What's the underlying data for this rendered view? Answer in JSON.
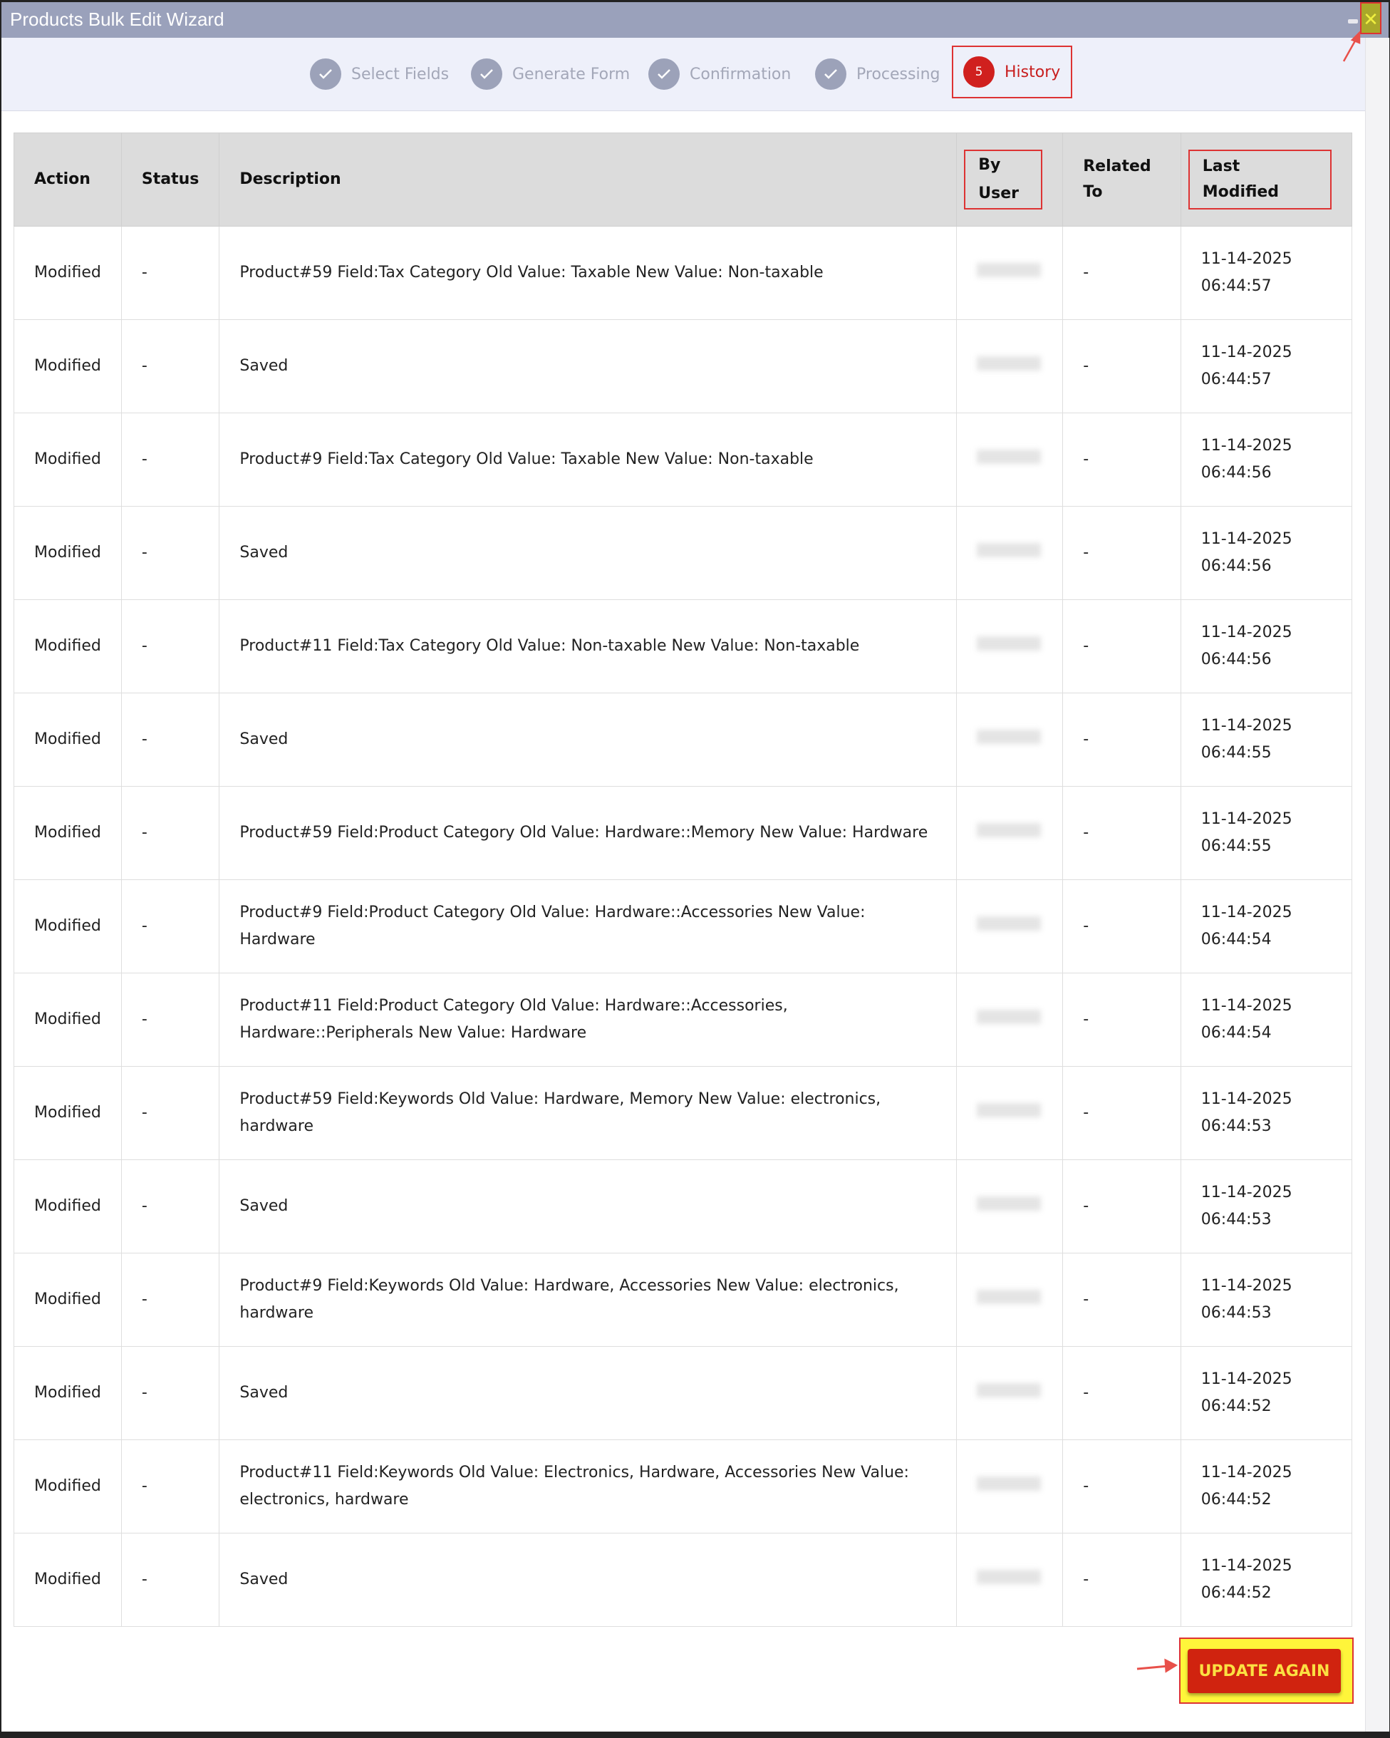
{
  "window": {
    "title": "Products Bulk Edit Wizard",
    "close_label": "✕"
  },
  "steps": [
    {
      "label": "Select Fields",
      "state": "done"
    },
    {
      "label": "Generate Form",
      "state": "done"
    },
    {
      "label": "Confirmation",
      "state": "done"
    },
    {
      "label": "Processing",
      "state": "done"
    },
    {
      "label": "History",
      "state": "active",
      "number": "5"
    }
  ],
  "table": {
    "headers": [
      "Action",
      "Status",
      "Description",
      "By User",
      "Related To",
      "Last Modified"
    ],
    "rows": [
      {
        "action": "Modified",
        "status": "-",
        "description": "Product#59 Field:Tax Category Old Value: Taxable New Value: Non-taxable",
        "related": "-",
        "date": "11-14-2025",
        "time": "06:44:57"
      },
      {
        "action": "Modified",
        "status": "-",
        "description": "Saved",
        "related": "-",
        "date": "11-14-2025",
        "time": "06:44:57"
      },
      {
        "action": "Modified",
        "status": "-",
        "description": "Product#9 Field:Tax Category Old Value: Taxable New Value: Non-taxable",
        "related": "-",
        "date": "11-14-2025",
        "time": "06:44:56"
      },
      {
        "action": "Modified",
        "status": "-",
        "description": "Saved",
        "related": "-",
        "date": "11-14-2025",
        "time": "06:44:56"
      },
      {
        "action": "Modified",
        "status": "-",
        "description": "Product#11 Field:Tax Category Old Value: Non-taxable New Value: Non-taxable",
        "related": "-",
        "date": "11-14-2025",
        "time": "06:44:56"
      },
      {
        "action": "Modified",
        "status": "-",
        "description": "Saved",
        "related": "-",
        "date": "11-14-2025",
        "time": "06:44:55"
      },
      {
        "action": "Modified",
        "status": "-",
        "description": "Product#59 Field:Product Category Old Value: Hardware::Memory New Value: Hardware",
        "related": "-",
        "date": "11-14-2025",
        "time": "06:44:55"
      },
      {
        "action": "Modified",
        "status": "-",
        "description": "Product#9 Field:Product Category Old Value: Hardware::Accessories New Value: Hardware",
        "related": "-",
        "date": "11-14-2025",
        "time": "06:44:54"
      },
      {
        "action": "Modified",
        "status": "-",
        "description": "Product#11 Field:Product Category Old Value: Hardware::Accessories, Hardware::Peripherals New Value: Hardware",
        "related": "-",
        "date": "11-14-2025",
        "time": "06:44:54"
      },
      {
        "action": "Modified",
        "status": "-",
        "description": "Product#59 Field:Keywords Old Value: Hardware, Memory New Value: electronics, hardware",
        "related": "-",
        "date": "11-14-2025",
        "time": "06:44:53"
      },
      {
        "action": "Modified",
        "status": "-",
        "description": "Saved",
        "related": "-",
        "date": "11-14-2025",
        "time": "06:44:53"
      },
      {
        "action": "Modified",
        "status": "-",
        "description": "Product#9 Field:Keywords Old Value: Hardware, Accessories New Value: electronics, hardware",
        "related": "-",
        "date": "11-14-2025",
        "time": "06:44:53"
      },
      {
        "action": "Modified",
        "status": "-",
        "description": "Saved",
        "related": "-",
        "date": "11-14-2025",
        "time": "06:44:52"
      },
      {
        "action": "Modified",
        "status": "-",
        "description": "Product#11 Field:Keywords Old Value: Electronics, Hardware, Accessories New Value: electronics, hardware",
        "related": "-",
        "date": "11-14-2025",
        "time": "06:44:52"
      },
      {
        "action": "Modified",
        "status": "-",
        "description": "Saved",
        "related": "-",
        "date": "11-14-2025",
        "time": "06:44:52"
      }
    ]
  },
  "footer": {
    "update_again_label": "UPDATE AGAIN"
  },
  "colors": {
    "titlebar": "#9aa1bb",
    "accent": "#d0201e",
    "highlight": "#fff53a",
    "button_text": "#fbe042"
  }
}
